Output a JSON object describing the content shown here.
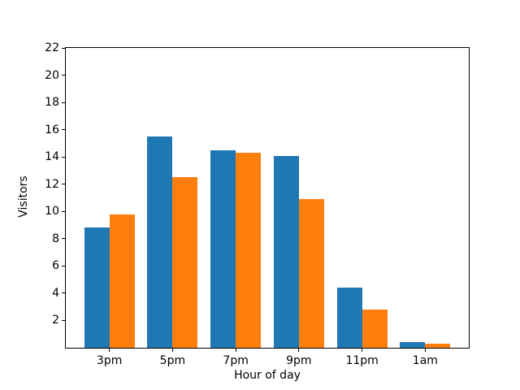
{
  "figure": {
    "background": "#ffffff"
  },
  "chart_data": {
    "type": "bar",
    "title": "",
    "xlabel": "Hour of day",
    "ylabel": "Visitors",
    "categories": [
      "3pm",
      "5pm",
      "7pm",
      "9pm",
      "11pm",
      "1am"
    ],
    "series": [
      {
        "name": "blue",
        "color": "#1f77b4",
        "values": [
          8.8,
          15.5,
          14.5,
          14.1,
          4.4,
          0.4
        ]
      },
      {
        "name": "orange",
        "color": "#ff7f0e",
        "values": [
          9.8,
          12.5,
          14.3,
          10.9,
          2.8,
          0.3
        ]
      }
    ],
    "ylim": [
      0,
      22
    ],
    "yticks": [
      2,
      4,
      6,
      8,
      10,
      12,
      14,
      16,
      18,
      20,
      22
    ],
    "xlim": [
      -0.69,
      5.69
    ],
    "bar_width": 0.4,
    "bar_offsets": [
      -0.2,
      0.2
    ],
    "grid": false,
    "legend_position": null,
    "axis_color": "#000000"
  }
}
